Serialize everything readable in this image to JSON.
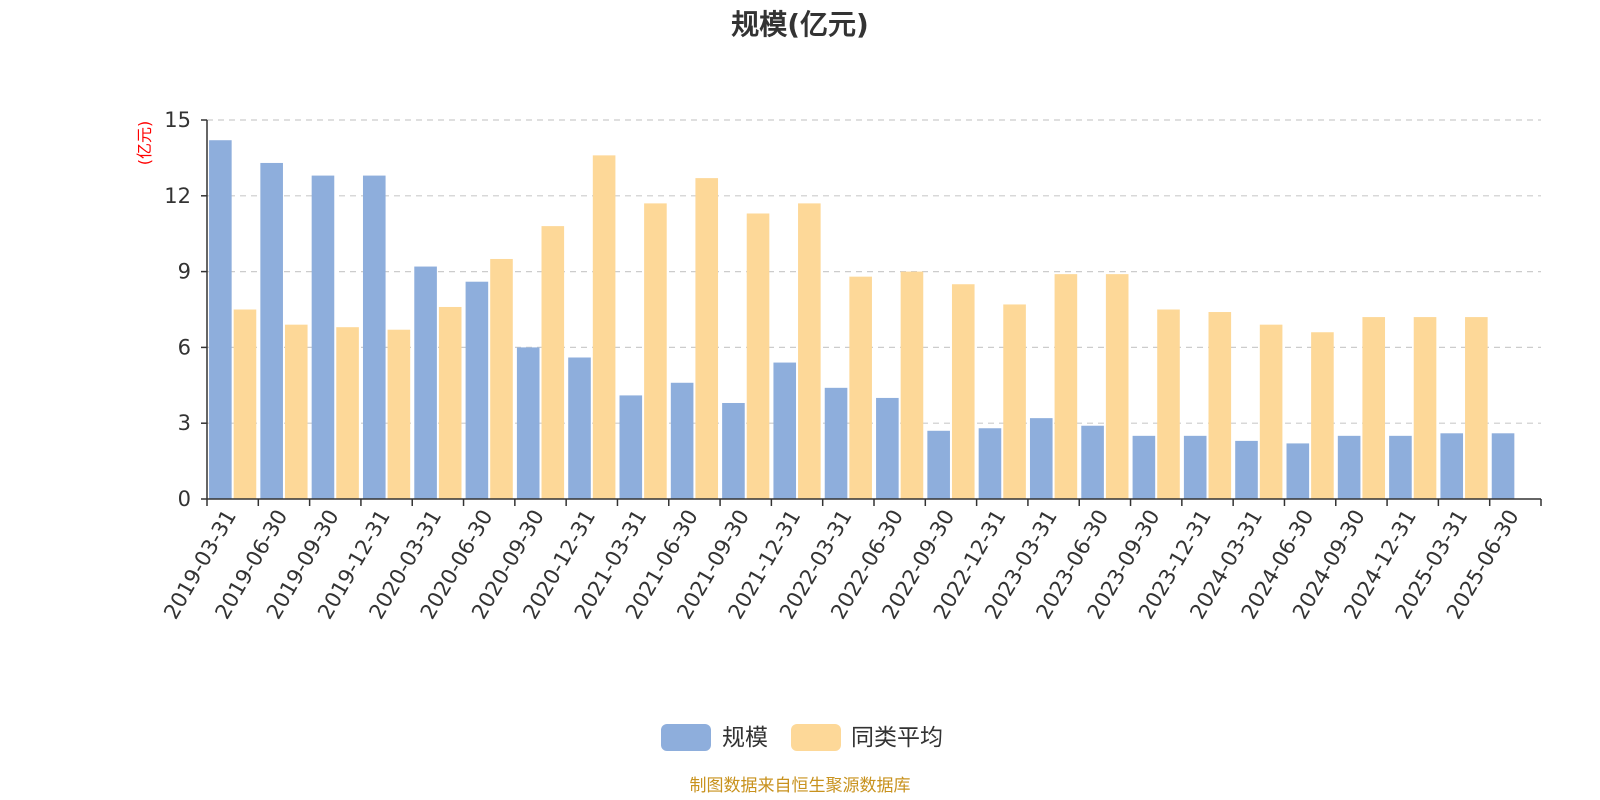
{
  "chart_data": {
    "type": "bar",
    "title": "规模(亿元)",
    "ylabel": "(亿元)",
    "xlabel": "",
    "ylim": [
      0,
      15
    ],
    "yticks": [
      0,
      3,
      6,
      9,
      12,
      15
    ],
    "grid": true,
    "legend_position": "bottom",
    "categories": [
      "2019-03-31",
      "2019-06-30",
      "2019-09-30",
      "2019-12-31",
      "2020-03-31",
      "2020-06-30",
      "2020-09-30",
      "2020-12-31",
      "2021-03-31",
      "2021-06-30",
      "2021-09-30",
      "2021-12-31",
      "2022-03-31",
      "2022-06-30",
      "2022-09-30",
      "2022-12-31",
      "2023-03-31",
      "2023-06-30",
      "2023-09-30",
      "2023-12-31",
      "2024-03-31",
      "2024-06-30",
      "2024-09-30",
      "2024-12-31",
      "2025-03-31",
      "2025-06-30"
    ],
    "series": [
      {
        "name": "规模",
        "color": "#8eaedc",
        "values": [
          14.2,
          13.3,
          12.8,
          12.8,
          9.2,
          8.6,
          6.0,
          5.6,
          4.1,
          4.6,
          3.8,
          5.4,
          4.4,
          4.0,
          2.7,
          2.8,
          3.2,
          2.9,
          2.5,
          2.5,
          2.3,
          2.2,
          2.5,
          2.5,
          2.6,
          2.6
        ]
      },
      {
        "name": "同类平均",
        "color": "#fdd898",
        "values": [
          7.5,
          6.9,
          6.8,
          6.7,
          7.6,
          9.5,
          10.8,
          13.6,
          11.7,
          12.7,
          11.3,
          11.7,
          8.8,
          9.0,
          8.5,
          7.7,
          8.9,
          8.9,
          7.5,
          7.4,
          6.9,
          6.6,
          7.2,
          7.2,
          7.2,
          null
        ]
      }
    ]
  },
  "footer": {
    "source": "制图数据来自恒生聚源数据库"
  },
  "colors": {
    "title": "#333333",
    "unit": "#ff0000",
    "axis": "#333333",
    "grid": "#cccccc",
    "source": "#c8921e"
  }
}
